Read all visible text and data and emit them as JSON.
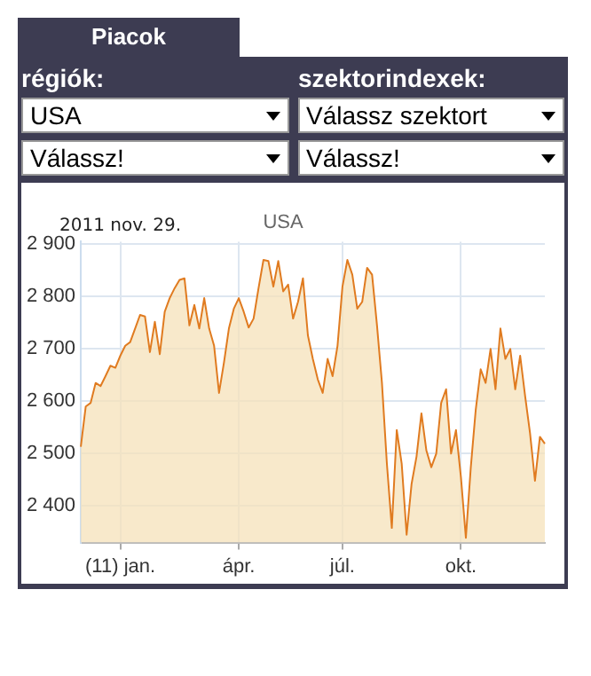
{
  "chart_data": {
    "type": "area",
    "title": "USA",
    "annotations": [
      "2011 nov. 29.",
      "Piacok",
      "régiók:",
      "szektorindexek:",
      "USA",
      "Válassz szektort",
      "Válassz!",
      "Válassz!"
    ],
    "categories": [
      null,
      null,
      null,
      null,
      null,
      null,
      null,
      null,
      "(11) jan.",
      null,
      null,
      null,
      null,
      null,
      null,
      null,
      null,
      null,
      null,
      null,
      null,
      null,
      null,
      null,
      null,
      null,
      null,
      null,
      null,
      null,
      null,
      null,
      "ápr.",
      null,
      null,
      null,
      null,
      null,
      null,
      null,
      null,
      null,
      null,
      null,
      null,
      null,
      null,
      null,
      null,
      null,
      null,
      null,
      null,
      "júl.",
      null,
      null,
      null,
      null,
      null,
      null,
      null,
      null,
      null,
      null,
      null,
      null,
      null,
      null,
      null,
      null,
      null,
      null,
      null,
      null,
      null,
      null,
      null,
      "okt.",
      null,
      null,
      null,
      null,
      null,
      null,
      null,
      null,
      null,
      null,
      null,
      null,
      null,
      null,
      null,
      null,
      null
    ],
    "series": [
      {
        "color": "#e07b20",
        "values": [
          2513,
          2590,
          2597,
          2635,
          2629,
          2648,
          2668,
          2664,
          2687,
          2706,
          2713,
          2739,
          2765,
          2762,
          2694,
          2752,
          2690,
          2771,
          2797,
          2816,
          2832,
          2835,
          2745,
          2784,
          2739,
          2797,
          2739,
          2706,
          2616,
          2674,
          2739,
          2777,
          2797,
          2771,
          2741,
          2758,
          2816,
          2870,
          2868,
          2819,
          2868,
          2810,
          2823,
          2758,
          2790,
          2835,
          2726,
          2681,
          2642,
          2616,
          2681,
          2648,
          2706,
          2819,
          2870,
          2842,
          2777,
          2790,
          2855,
          2842,
          2745,
          2635,
          2481,
          2358,
          2545,
          2481,
          2345,
          2442,
          2494,
          2577,
          2506,
          2474,
          2500,
          2597,
          2623,
          2500,
          2545,
          2455,
          2339,
          2474,
          2584,
          2661,
          2635,
          2700,
          2623,
          2739,
          2681,
          2700,
          2623,
          2687,
          2610,
          2539,
          2448,
          2532,
          2519
        ]
      }
    ],
    "ylim": [
      2330,
      2905
    ],
    "yticks": [
      {
        "value": 2400,
        "label": "2 400"
      },
      {
        "value": 2500,
        "label": "2 500"
      },
      {
        "value": 2600,
        "label": "2 600"
      },
      {
        "value": 2700,
        "label": "2 700"
      },
      {
        "value": 2800,
        "label": "2 800"
      },
      {
        "value": 2900,
        "label": "2 900"
      }
    ],
    "grid": true,
    "legend": false
  }
}
